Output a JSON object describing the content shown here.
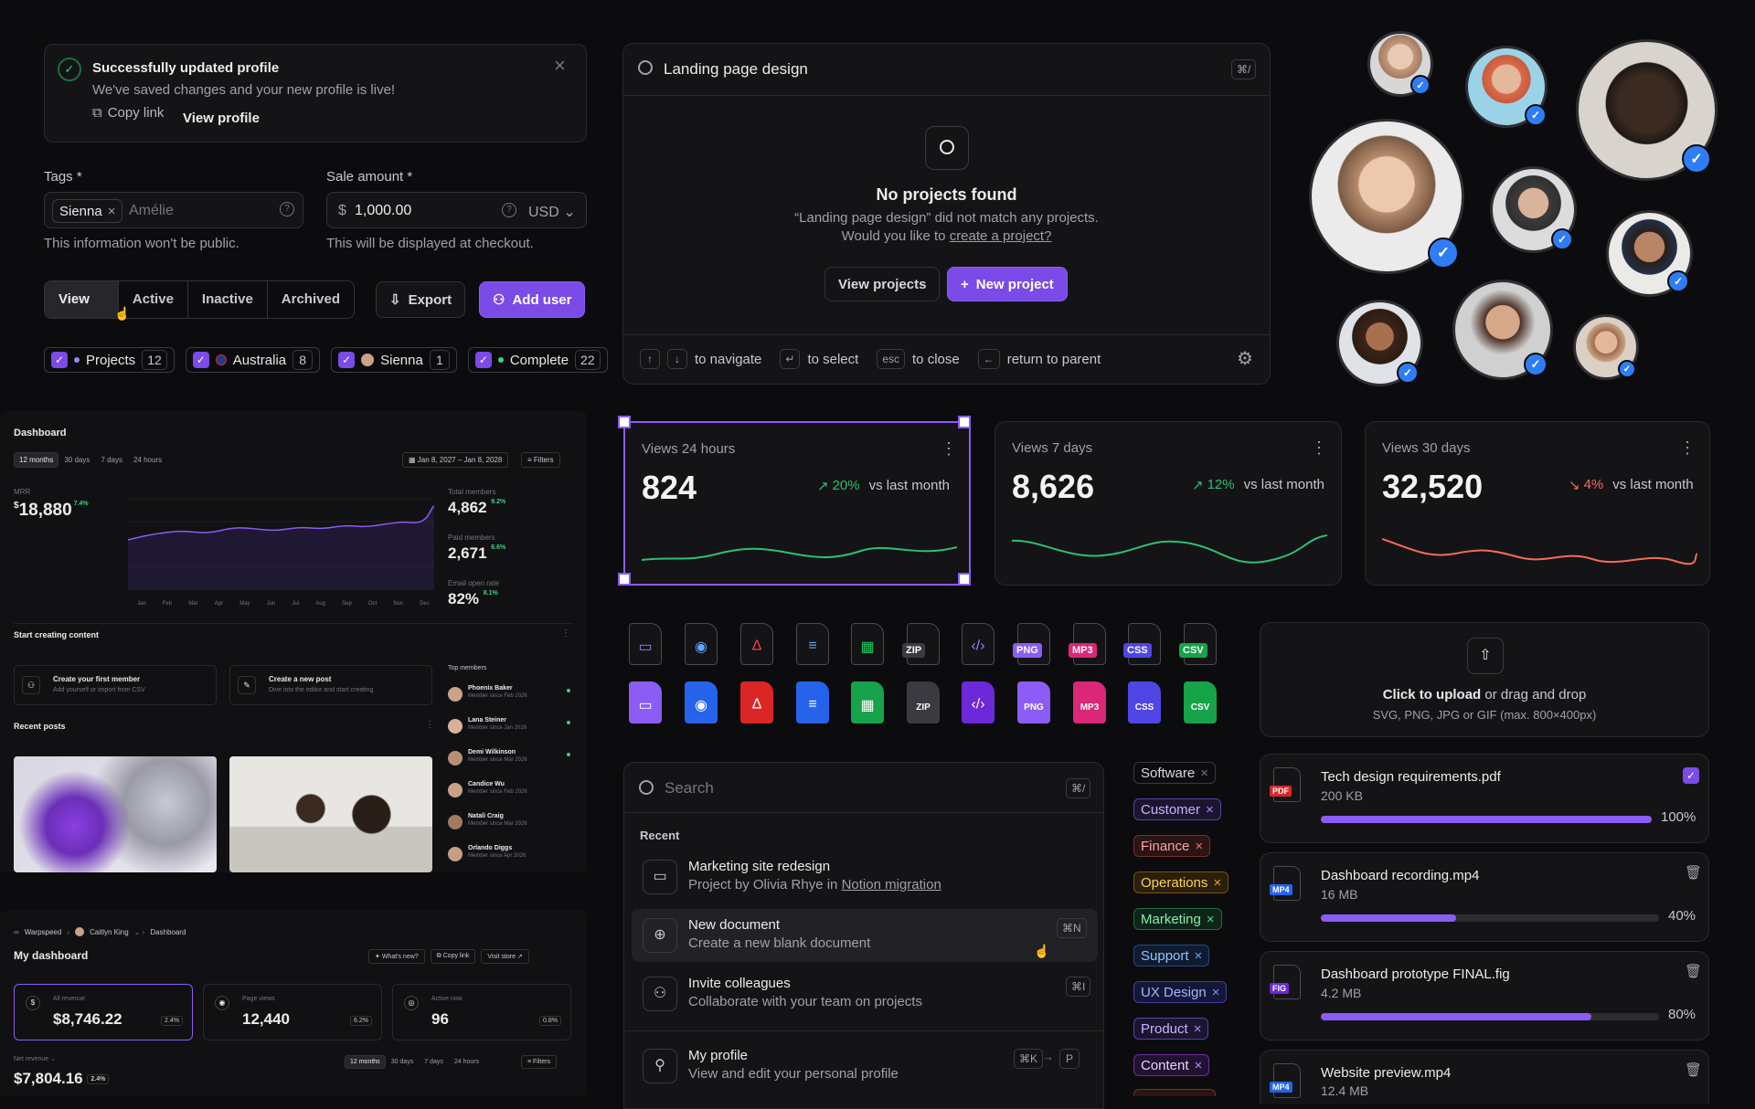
{
  "toast": {
    "title": "Successfully updated profile",
    "message": "We've saved changes and your new profile is live!",
    "copy_link": "Copy link",
    "view_profile": "View profile"
  },
  "tags_field": {
    "label": "Tags *",
    "chip": "Sienna",
    "value": "Amélie",
    "help": "This information won't be public."
  },
  "sale_field": {
    "label": "Sale amount *",
    "prefix": "$",
    "value": "1,000.00",
    "currency": "USD",
    "help": "This will be displayed at checkout."
  },
  "filter_tabs": [
    "View all",
    "Active",
    "Inactive",
    "Archived"
  ],
  "actions": {
    "export": "Export",
    "add_user": "Add user"
  },
  "filter_chips": [
    {
      "label": "Projects",
      "count": "12"
    },
    {
      "label": "Australia",
      "count": "8"
    },
    {
      "label": "Sienna",
      "count": "1"
    },
    {
      "label": "Complete",
      "count": "22"
    }
  ],
  "search_modal": {
    "query": "Landing page design",
    "shortcut": "⌘/",
    "empty_title": "No projects found",
    "empty_line1": "“Landing page design” did not match any projects.",
    "empty_line2_pre": "Would you like to ",
    "empty_link": "create a project?",
    "view_projects": "View projects",
    "new_project": "New project",
    "hint_navigate": "to navigate",
    "hint_select": "to select",
    "hint_esc": "esc",
    "hint_close": "to close",
    "hint_parent": "return to parent"
  },
  "dashboard": {
    "title": "Dashboard",
    "ranges": [
      "12 months",
      "30 days",
      "7 days",
      "24 hours"
    ],
    "date_range": "Jan 8, 2027 – Jan 8, 2028",
    "filters": "Filters",
    "mrr_label": "MRR",
    "mrr_value": "18,880",
    "mrr_change": "7.4%",
    "months": [
      "Jan",
      "Feb",
      "Mar",
      "Apr",
      "May",
      "Jun",
      "Jul",
      "Aug",
      "Sep",
      "Oct",
      "Nov",
      "Dec"
    ],
    "kpis": [
      {
        "label": "Total members",
        "value": "4,862",
        "change": "9.2%"
      },
      {
        "label": "Paid members",
        "value": "2,671",
        "change": "6.6%"
      },
      {
        "label": "Email open rate",
        "value": "82%",
        "change": "8.1%"
      }
    ],
    "start_title": "Start creating content",
    "tasks": [
      {
        "title": "Create your first member",
        "sub": "Add yourself or import from CSV"
      },
      {
        "title": "Create a new post",
        "sub": "Dive into the editor and start creating"
      }
    ],
    "recent_posts": "Recent posts",
    "top_members": "Top members",
    "members": [
      {
        "name": "Phoenix Baker",
        "since": "Member since Feb 2026"
      },
      {
        "name": "Lana Steiner",
        "since": "Member since Jan 2026"
      },
      {
        "name": "Demi Wilkinson",
        "since": "Member since Mar 2026"
      },
      {
        "name": "Candice Wu",
        "since": "Member since Feb 2026"
      },
      {
        "name": "Natali Craig",
        "since": "Member since Mar 2026"
      },
      {
        "name": "Orlando Diggs",
        "since": "Member since Apr 2026"
      }
    ]
  },
  "mydash": {
    "crumb1": "Warpspeed",
    "crumb2": "Caitlyn King",
    "crumb3": "Dashboard",
    "title": "My dashboard",
    "whats_new": "What's new?",
    "copy_link": "Copy link",
    "visit_store": "Visit store",
    "stats": [
      {
        "label": "All revenue",
        "value": "$8,746.22",
        "change": "2.4%"
      },
      {
        "label": "Page views",
        "value": "12,440",
        "change": "6.2%"
      },
      {
        "label": "Active now",
        "value": "96",
        "change": "0.8%"
      }
    ],
    "ranges": [
      "12 months",
      "30 days",
      "7 days",
      "24 hours"
    ],
    "filters": "Filters",
    "net_label": "Net revenue",
    "net_value": "$7,804.16",
    "net_change": "2.4%"
  },
  "metrics": [
    {
      "label": "Views 24 hours",
      "value": "824",
      "change": "20%",
      "direction": "up",
      "vs": "vs last month",
      "color": "#2fbf71"
    },
    {
      "label": "Views 7 days",
      "value": "8,626",
      "change": "12%",
      "direction": "up",
      "vs": "vs last month",
      "color": "#2fbf71"
    },
    {
      "label": "Views 30 days",
      "value": "32,520",
      "change": "4%",
      "direction": "down",
      "vs": "vs last month",
      "color": "#f26b5b"
    }
  ],
  "file_types": [
    "ZIP",
    "PNG",
    "MP3",
    "CSS",
    "CSV"
  ],
  "upload": {
    "click": "Click to upload",
    "rest": " or drag and drop",
    "hint": "SVG, PNG, JPG or GIF (max. 800×400px)"
  },
  "files": [
    {
      "name": "Tech design requirements.pdf",
      "size": "200 KB",
      "progress": 100,
      "pct": "100%",
      "type": "PDF"
    },
    {
      "name": "Dashboard recording.mp4",
      "size": "16 MB",
      "progress": 40,
      "pct": "40%",
      "type": "MP4"
    },
    {
      "name": "Dashboard prototype FINAL.fig",
      "size": "4.2 MB",
      "progress": 80,
      "pct": "80%",
      "type": "FIG"
    },
    {
      "name": "Website preview.mp4",
      "size": "12.4 MB",
      "type": "MP4"
    }
  ],
  "cmd": {
    "placeholder": "Search",
    "shortcut": "⌘/",
    "recent": "Recent",
    "items": [
      {
        "title": "Marketing site redesign",
        "sub_pre": "Project by Olivia Rhye in ",
        "sub_link": "Notion migration",
        "kbd": ""
      },
      {
        "title": "New document",
        "sub": "Create a new blank document",
        "kbd": "⌘N"
      },
      {
        "title": "Invite colleagues",
        "sub": "Collaborate with your team on projects",
        "kbd": "⌘I"
      },
      {
        "title": "My profile",
        "sub": "View and edit your personal profile",
        "kbd": "⌘K",
        "kbd2": "P"
      }
    ]
  },
  "tags": [
    {
      "label": "Software",
      "color": "#9a9aa2"
    },
    {
      "label": "Customer",
      "color": "#a78bfa"
    },
    {
      "label": "Finance",
      "color": "#f87171"
    },
    {
      "label": "Operations",
      "color": "#f59e0b"
    },
    {
      "label": "Marketing",
      "color": "#4ade80"
    },
    {
      "label": "Support",
      "color": "#60a5fa"
    },
    {
      "label": "UX Design",
      "color": "#818cf8"
    },
    {
      "label": "Product",
      "color": "#a78bfa"
    },
    {
      "label": "Content",
      "color": "#c084fc"
    }
  ]
}
